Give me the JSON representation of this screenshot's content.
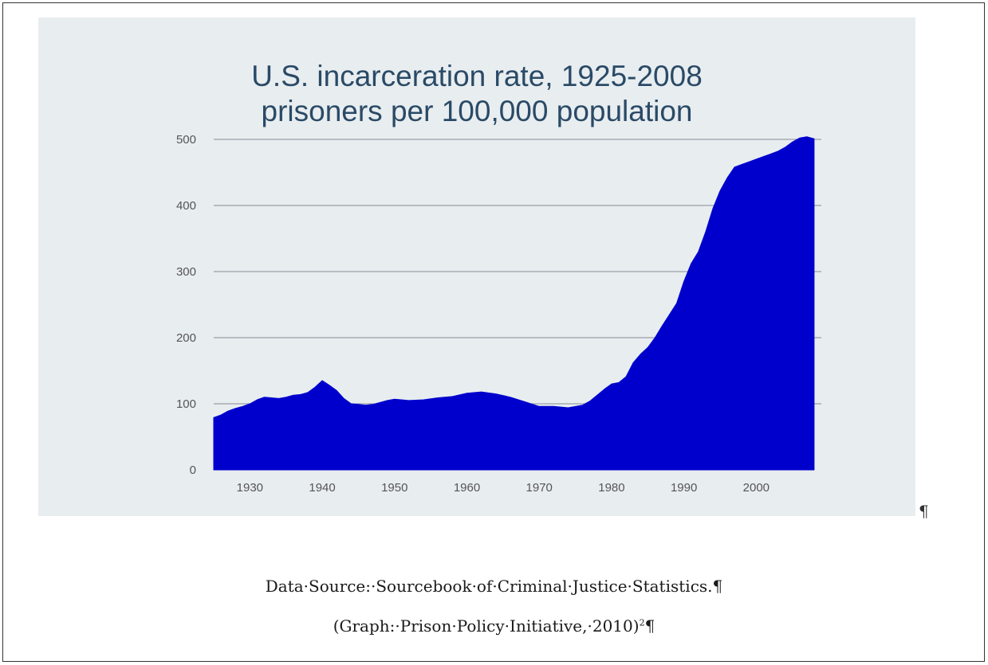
{
  "chart_data": {
    "type": "area",
    "title": "U.S. incarceration rate, 1925-2008",
    "subtitle": "prisoners per 100,000 population",
    "xlabel": "",
    "ylabel": "",
    "xlim": [
      1925,
      2009
    ],
    "ylim": [
      0,
      500
    ],
    "x_ticks": [
      1930,
      1940,
      1950,
      1960,
      1970,
      1980,
      1990,
      2000
    ],
    "y_ticks": [
      0,
      100,
      200,
      300,
      400,
      500
    ],
    "grid": "horizontal",
    "legend": "none",
    "colors": {
      "area": "#0000cd",
      "grid": "#9aa0a6",
      "background": "#e8edf0",
      "title": "#2a4a66",
      "tick": "#555555"
    },
    "series": [
      {
        "x": [
          1925,
          1926,
          1927,
          1928,
          1929,
          1930,
          1931,
          1932,
          1933,
          1934,
          1935,
          1936,
          1937,
          1938,
          1939,
          1940,
          1941,
          1942,
          1943,
          1944,
          1945,
          1946,
          1947,
          1948,
          1949,
          1950,
          1952,
          1954,
          1956,
          1958,
          1960,
          1962,
          1964,
          1966,
          1968,
          1970,
          1972,
          1974,
          1976,
          1977,
          1978,
          1979,
          1980,
          1981,
          1982,
          1983,
          1984,
          1985,
          1986,
          1987,
          1988,
          1989,
          1990,
          1991,
          1992,
          1993,
          1994,
          1995,
          1996,
          1997,
          1998,
          1999,
          2000,
          2001,
          2002,
          2003,
          2004,
          2005,
          2006,
          2007,
          2008
        ],
        "values": [
          79,
          83,
          89,
          93,
          96,
          100,
          106,
          110,
          109,
          108,
          110,
          113,
          114,
          117,
          125,
          135,
          128,
          120,
          108,
          100,
          99,
          98,
          99,
          102,
          105,
          107,
          105,
          106,
          109,
          111,
          116,
          118,
          115,
          110,
          103,
          96,
          96,
          94,
          98,
          104,
          113,
          122,
          130,
          132,
          141,
          162,
          175,
          185,
          200,
          218,
          235,
          252,
          285,
          312,
          330,
          360,
          395,
          422,
          442,
          458,
          462,
          466,
          470,
          474,
          478,
          482,
          488,
          496,
          502,
          504,
          501
        ]
      }
    ]
  },
  "captions": {
    "pilcrow": "¶",
    "source": "Data·Source:·Sourcebook·of·Criminal·Justice·Statistics.¶",
    "graph_credit": "(Graph:·Prison·Policy·Initiative,·2010)",
    "footnote_mark": "2",
    "graph_credit_end": "¶"
  }
}
